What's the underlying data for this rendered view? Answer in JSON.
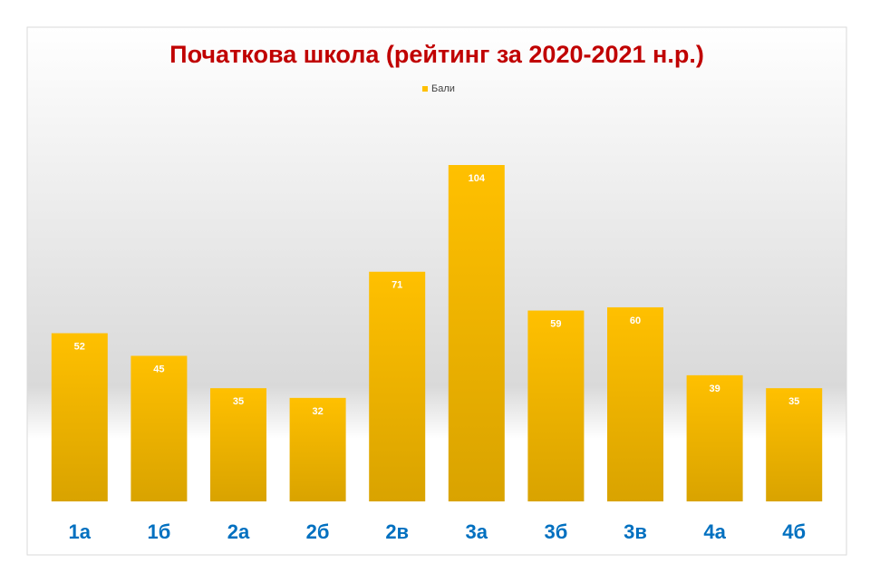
{
  "chart_data": {
    "type": "bar",
    "title": "Початкова школа (рейтинг за 2020-2021 н.р.)",
    "categories": [
      "1а",
      "1б",
      "2а",
      "2б",
      "2в",
      "3а",
      "3б",
      "3в",
      "4а",
      "4б"
    ],
    "series": [
      {
        "name": "Бали",
        "color": "#ffc000",
        "values": [
          52,
          45,
          35,
          32,
          71,
          104,
          59,
          60,
          39,
          35
        ]
      }
    ]
  }
}
